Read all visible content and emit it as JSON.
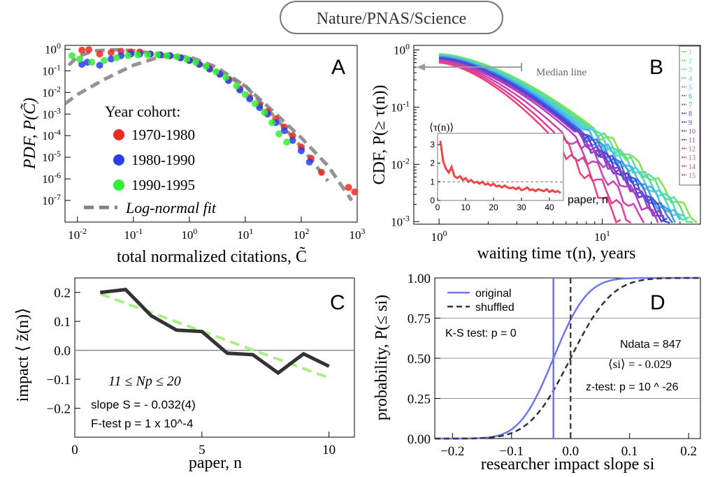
{
  "header": {
    "title": "Nature/PNAS/Science"
  },
  "chart_data": [
    {
      "panel": "A",
      "type": "scatter",
      "title": "",
      "xlabel": "total normalized citations, C̃",
      "ylabel": "PDF, P(C̃)",
      "xscale": "log",
      "yscale": "log",
      "xlim": [
        0.006,
        1000
      ],
      "ylim": [
        1e-08,
        1.5
      ],
      "xticks": [
        "10^-2",
        "10^-1",
        "10^0",
        "10^1",
        "10^2",
        "10^3"
      ],
      "yticks": [
        "10^-7",
        "10^-6",
        "10^-5",
        "10^-4",
        "10^-3",
        "10^-2",
        "10^-1",
        "10^0"
      ],
      "legend_title": "Year cohort:",
      "series": [
        {
          "name": "1970-1980",
          "color": "#ee2a20",
          "points": [
            [
              0.012,
              0.9
            ],
            [
              0.016,
              0.95
            ],
            [
              0.025,
              0.6
            ],
            [
              0.04,
              0.7
            ],
            [
              0.06,
              0.8
            ],
            [
              0.09,
              0.75
            ],
            [
              0.13,
              0.75
            ],
            [
              0.2,
              0.6
            ],
            [
              0.3,
              0.55
            ],
            [
              0.45,
              0.5
            ],
            [
              0.7,
              0.4
            ],
            [
              1.0,
              0.3
            ],
            [
              1.5,
              0.2
            ],
            [
              2.3,
              0.13
            ],
            [
              3.5,
              0.07
            ],
            [
              5,
              0.04
            ],
            [
              8,
              0.015
            ],
            [
              12,
              0.006
            ],
            [
              18,
              0.0025
            ],
            [
              25,
              0.0013
            ],
            [
              35,
              0.0006
            ],
            [
              50,
              0.00025
            ],
            [
              70,
              0.0001
            ],
            [
              100,
              3e-05
            ],
            [
              150,
              9e-06
            ],
            [
              230,
              2e-06
            ],
            [
              700,
              4e-07
            ],
            [
              900,
              2.5e-07
            ]
          ]
        },
        {
          "name": "1980-1990",
          "color": "#2a3df0",
          "points": [
            [
              0.012,
              0.2
            ],
            [
              0.015,
              0.25
            ],
            [
              0.025,
              0.18
            ],
            [
              0.04,
              0.35
            ],
            [
              0.06,
              0.5
            ],
            [
              0.09,
              0.6
            ],
            [
              0.13,
              0.6
            ],
            [
              0.2,
              0.6
            ],
            [
              0.3,
              0.55
            ],
            [
              0.45,
              0.5
            ],
            [
              0.7,
              0.4
            ],
            [
              1.0,
              0.3
            ],
            [
              1.5,
              0.2
            ],
            [
              2.3,
              0.12
            ],
            [
              3.5,
              0.07
            ],
            [
              5,
              0.035
            ],
            [
              8,
              0.013
            ],
            [
              12,
              0.005
            ],
            [
              18,
              0.002
            ],
            [
              25,
              0.001
            ],
            [
              35,
              0.0004
            ],
            [
              50,
              0.00017
            ],
            [
              70,
              6e-05
            ],
            [
              100,
              2e-05
            ],
            [
              140,
              6e-06
            ]
          ]
        },
        {
          "name": "1990-1995",
          "color": "#33ee33",
          "points": [
            [
              0.008,
              0.5
            ],
            [
              0.011,
              0.35
            ],
            [
              0.018,
              0.25
            ],
            [
              0.03,
              0.3
            ],
            [
              0.05,
              0.4
            ],
            [
              0.08,
              0.5
            ],
            [
              0.12,
              0.55
            ],
            [
              0.18,
              0.55
            ],
            [
              0.27,
              0.55
            ],
            [
              0.4,
              0.5
            ],
            [
              0.6,
              0.45
            ],
            [
              0.9,
              0.35
            ],
            [
              1.3,
              0.25
            ],
            [
              2,
              0.16
            ],
            [
              3,
              0.09
            ],
            [
              4.5,
              0.05
            ],
            [
              7,
              0.02
            ],
            [
              10,
              0.008
            ],
            [
              15,
              0.003
            ],
            [
              22,
              0.0012
            ],
            [
              30,
              0.0004
            ],
            [
              40,
              0.00012
            ],
            [
              55,
              5e-05
            ]
          ]
        }
      ],
      "fits": [
        {
          "name": "Log-normal fit",
          "style": "dashed",
          "color": "#808080",
          "curves": [
            [
              [
                0.007,
                0.18
              ],
              [
                0.01,
                0.45
              ],
              [
                0.02,
                0.85
              ],
              [
                0.05,
                0.95
              ],
              [
                0.1,
                0.85
              ],
              [
                0.3,
                0.6
              ],
              [
                1,
                0.35
              ],
              [
                3,
                0.1
              ],
              [
                10,
                0.02
              ],
              [
                30,
                0.0015
              ],
              [
                100,
                8e-05
              ],
              [
                300,
                4e-06
              ],
              [
                800,
                1e-07
              ]
            ],
            [
              [
                0.006,
                0.003
              ],
              [
                0.01,
                0.008
              ],
              [
                0.03,
                0.04
              ],
              [
                0.1,
                0.18
              ],
              [
                0.3,
                0.45
              ],
              [
                1,
                0.45
              ],
              [
                3,
                0.15
              ],
              [
                10,
                0.02
              ],
              [
                30,
                0.001
              ],
              [
                100,
                3e-05
              ],
              [
                300,
                8e-07
              ]
            ]
          ]
        }
      ],
      "panel_label": "A"
    },
    {
      "panel": "B",
      "type": "line",
      "xlabel": "waiting time τ(n), years",
      "ylabel": "CDF, P(≥ τ(n))",
      "xscale": "log",
      "yscale": "log",
      "xlim": [
        0.7,
        40
      ],
      "ylim": [
        0.0009,
        1.2
      ],
      "xticks": [
        "10^0",
        "10^1"
      ],
      "yticks": [
        "10^-3",
        "10^-2",
        "10^-1",
        "10^0"
      ],
      "annotation": "Median line",
      "median_y": 0.5,
      "median_x_end": 3.2,
      "legend": [
        "1",
        "2",
        "3",
        "4",
        "5",
        "6",
        "7",
        "8",
        "9",
        "10",
        "11",
        "12",
        "13",
        "14",
        "15"
      ],
      "colors": [
        "#7ee84a",
        "#5ee08c",
        "#52dcb4",
        "#4fd0d6",
        "#4ab8e8",
        "#4499ea",
        "#3f78e6",
        "#3c55de",
        "#4a40d6",
        "#7040cc",
        "#9440c6",
        "#b43fbf",
        "#cf3fb0",
        "#e03e98",
        "#ee3f7c"
      ],
      "tail_x": [
        38,
        36,
        34,
        32,
        30,
        28,
        27,
        26,
        25,
        24,
        24,
        22,
        18,
        15,
        13
      ],
      "inset": {
        "ylabel": "⟨τ(n)⟩",
        "xlabel": "paper, n",
        "xlim": [
          0,
          45
        ],
        "ylim": [
          0,
          3.6
        ],
        "xticks": [
          "0",
          "10",
          "20",
          "30",
          "40"
        ],
        "yticks": [
          "0",
          "1",
          "2",
          "3"
        ],
        "ref_line": 1,
        "values": [
          3.2,
          2.1,
          1.7,
          1.5,
          1.8,
          1.3,
          1.2,
          1.3,
          1.1,
          1.2,
          1.0,
          1.1,
          0.95,
          1.0,
          0.9,
          1.0,
          0.85,
          0.9,
          0.8,
          0.9,
          0.75,
          0.8,
          0.7,
          0.8,
          0.7,
          0.65,
          0.7,
          0.6,
          0.7,
          0.55,
          0.6,
          0.7,
          0.55,
          0.6,
          0.5,
          0.6,
          0.55,
          0.5,
          0.6,
          0.45,
          0.55,
          0.45,
          0.5,
          0.4
        ]
      },
      "panel_label": "B"
    },
    {
      "panel": "C",
      "type": "line",
      "xlabel": "paper, n",
      "ylabel": "impact ⟨ z̃(n)⟩",
      "xlim": [
        0,
        11
      ],
      "ylim": [
        -0.3,
        0.25
      ],
      "xticks": [
        "0",
        "5",
        "10"
      ],
      "yticks": [
        "−0.2",
        "−0.1",
        "0.0",
        "0.1",
        "0.2"
      ],
      "series": [
        {
          "x": [
            1,
            2,
            3,
            4,
            5,
            6,
            7,
            8,
            9,
            10
          ],
          "values": [
            0.2,
            0.21,
            0.12,
            0.07,
            0.065,
            -0.01,
            -0.015,
            -0.078,
            -0.012,
            -0.055
          ],
          "color": "#333333"
        }
      ],
      "fit": {
        "x": [
          1,
          10
        ],
        "values": [
          0.195,
          -0.095
        ],
        "color": "#aaee88",
        "style": "dashed"
      },
      "text": {
        "range": "11 ≤ Np ≤ 20",
        "slope": "slope S = - 0.032(4)",
        "ftest": "F-test p = 1 x 10^-4"
      },
      "panel_label": "C"
    },
    {
      "panel": "D",
      "type": "line",
      "xlabel": "researcher impact slope si",
      "ylabel": "probability, P(≤ si)",
      "xlim": [
        -0.23,
        0.22
      ],
      "ylim": [
        0,
        1
      ],
      "xticks": [
        "−0.2",
        "−0.1",
        "0.0",
        "0.1",
        "0.2"
      ],
      "yticks": [
        "0.00",
        "0.25",
        "0.50",
        "0.75",
        "1.00"
      ],
      "series": [
        {
          "name": "original",
          "style": "solid",
          "color": "#6f74f0",
          "mean": -0.029,
          "sd": 0.045
        },
        {
          "name": "shuffled",
          "style": "dashed",
          "color": "#333333",
          "mean": 0.0,
          "sd": 0.055
        }
      ],
      "vlines": [
        {
          "x": -0.029,
          "color": "#6f74f0",
          "style": "solid"
        },
        {
          "x": 0.0,
          "color": "#444444",
          "style": "dashed"
        }
      ],
      "text": {
        "ks": "K-S test: p = 0",
        "ndata": "Ndata = 847",
        "mean": "⟨si⟩ = - 0.029",
        "ztest": "z-test: p = 10 ^ -26"
      },
      "panel_label": "D"
    }
  ]
}
